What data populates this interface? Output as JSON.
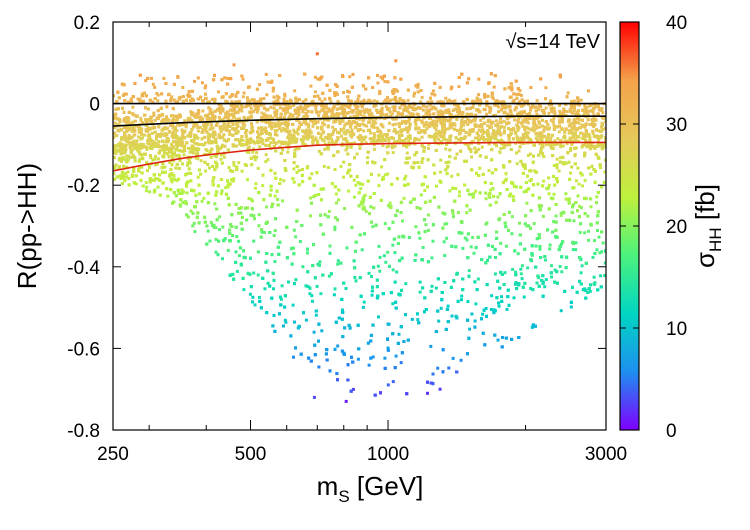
{
  "chart_data": {
    "type": "scatter",
    "xscale": "log",
    "xlim": [
      250,
      3000
    ],
    "ylim": [
      -0.8,
      0.2
    ],
    "x_ticks": [
      250,
      500,
      1000,
      3000
    ],
    "x_tick_labels": [
      "250",
      "500",
      "1000",
      "3000"
    ],
    "y_ticks": [
      0.2,
      0,
      -0.2,
      -0.4,
      -0.6,
      -0.8
    ],
    "y_tick_labels": [
      "0.2",
      "0",
      "-0.2",
      "-0.4",
      "-0.6",
      "-0.8"
    ],
    "xlabel": {
      "main": "m",
      "sub": "S",
      "rest": " [GeV]"
    },
    "ylabel": "R(pp->HH)",
    "annotation": "√s=14 TeV",
    "colorbar": {
      "label": {
        "main": "σ",
        "sub": "HH",
        "rest": " [fb]"
      },
      "range": [
        0,
        40
      ],
      "ticks": [
        0,
        10,
        20,
        30,
        40
      ],
      "tick_labels": [
        "0",
        "10",
        "20",
        "30",
        "40"
      ],
      "colormap": "rainbow",
      "stops": [
        "#7f00ff",
        "#1e8ff0",
        "#00d6c2",
        "#4cf27c",
        "#bff13d",
        "#e6c85a",
        "#f4a24a",
        "#ff0000"
      ]
    },
    "reference_curves": [
      {
        "name": "upper black line",
        "color": "#000000",
        "x": [
          250,
          500,
          1000,
          3000
        ],
        "y": [
          0.0,
          0.0,
          0.0,
          0.0
        ]
      },
      {
        "name": "middle black curve",
        "color": "#000000",
        "x": [
          250,
          350,
          500,
          700,
          1000,
          1500,
          2000,
          3000
        ],
        "y": [
          -0.055,
          -0.047,
          -0.041,
          -0.037,
          -0.034,
          -0.032,
          -0.031,
          -0.031
        ]
      },
      {
        "name": "red curve",
        "color": "#dd2211",
        "x": [
          250,
          300,
          350,
          400,
          500,
          600,
          700,
          800,
          1000,
          1500,
          2000,
          3000
        ],
        "y": [
          -0.165,
          -0.148,
          -0.135,
          -0.126,
          -0.114,
          -0.107,
          -0.102,
          -0.1,
          -0.098,
          -0.096,
          -0.095,
          -0.095
        ]
      }
    ],
    "point_density": {
      "description": "dense scatter of ~9000 model points; sigma_HH correlates with R",
      "points_approx": 9000,
      "band_top_y": 0.0,
      "band_bottom_y": -0.1,
      "sigma_at_R0": 31,
      "sigma_per_unit_R": 40
    },
    "sample_outliers": [
      {
        "x": 700,
        "y": 0.122
      },
      {
        "x": 1040,
        "y": 0.105
      },
      {
        "x": 460,
        "y": 0.095
      },
      {
        "x": 690,
        "y": -0.72
      },
      {
        "x": 810,
        "y": -0.73
      },
      {
        "x": 1220,
        "y": -0.71
      },
      {
        "x": 1300,
        "y": -0.7
      }
    ]
  }
}
